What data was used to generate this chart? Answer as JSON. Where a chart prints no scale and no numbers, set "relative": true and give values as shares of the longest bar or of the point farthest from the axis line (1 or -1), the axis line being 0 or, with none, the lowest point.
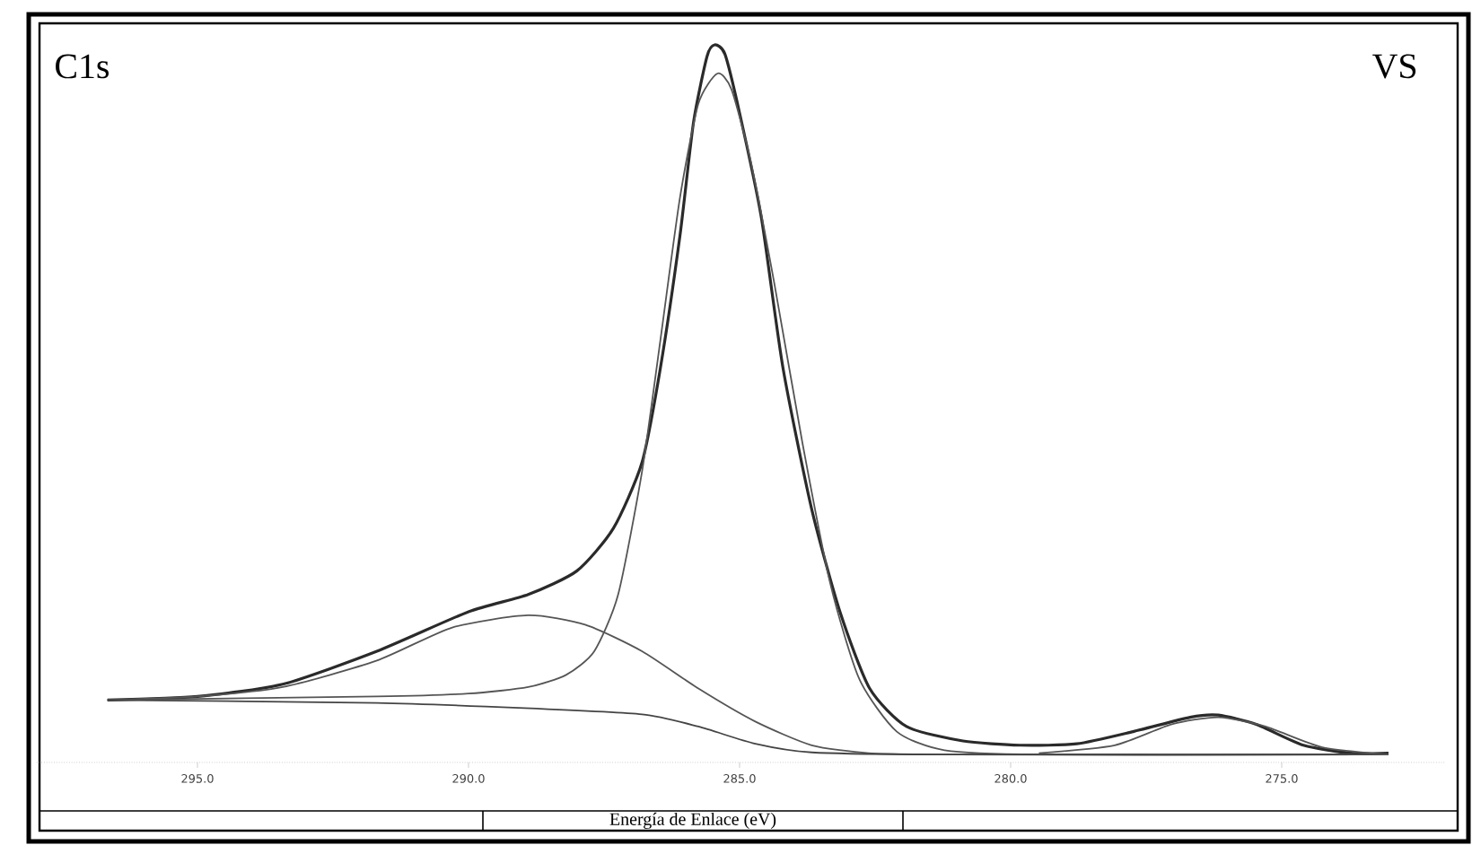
{
  "chart_data": {
    "type": "line",
    "relative": true,
    "xlabel": "Energía de Enlace (eV)",
    "annotations": [
      "C1s",
      "VS"
    ],
    "xlim": [
      298,
      272
    ],
    "xticks": [
      {
        "value": 295,
        "label": "295.0"
      },
      {
        "value": 290,
        "label": "290.0"
      },
      {
        "value": 285,
        "label": "285.0"
      },
      {
        "value": 280,
        "label": "280.0"
      },
      {
        "value": 275,
        "label": "275.0"
      }
    ],
    "grid": false,
    "marker": "none",
    "line_style": "solid",
    "series": [
      {
        "color": "#2a2a2a",
        "x": [
          296.66,
          295.0,
          293.43,
          291.69,
          290.0,
          288.9,
          288.0,
          287.33,
          286.8,
          286.46,
          286.1,
          285.85,
          285.6,
          285.46,
          285.27,
          285.0,
          284.6,
          284.2,
          283.67,
          283.14,
          282.6,
          281.92,
          280.88,
          279.83,
          278.78,
          277.74,
          276.69,
          276.17,
          275.47,
          274.6,
          273.73,
          273.03
        ],
        "values": [
          0.087,
          0.092,
          0.109,
          0.155,
          0.21,
          0.234,
          0.267,
          0.326,
          0.418,
          0.55,
          0.734,
          0.892,
          0.984,
          1.0,
          0.987,
          0.905,
          0.76,
          0.55,
          0.353,
          0.208,
          0.103,
          0.05,
          0.03,
          0.024,
          0.026,
          0.043,
          0.063,
          0.066,
          0.053,
          0.024,
          0.013,
          0.013
        ]
      },
      {
        "color": "#555555",
        "x": [
          296.66,
          291.69,
          290.0,
          288.9,
          288.2,
          287.68,
          287.24,
          286.8,
          286.46,
          286.1,
          285.76,
          285.41,
          285.15,
          284.8,
          284.36,
          283.84,
          283.32,
          282.79,
          282.1,
          281.22,
          279.48,
          273.03
        ],
        "values": [
          0.087,
          0.092,
          0.096,
          0.105,
          0.122,
          0.155,
          0.234,
          0.405,
          0.589,
          0.787,
          0.918,
          0.96,
          0.938,
          0.839,
          0.668,
          0.445,
          0.247,
          0.116,
          0.043,
          0.017,
          0.011,
          0.011
        ]
      },
      {
        "color": "#555555",
        "x": [
          296.66,
          295.0,
          293.43,
          291.69,
          290.3,
          288.9,
          287.85,
          286.8,
          285.76,
          284.71,
          283.67,
          282.62,
          281.22,
          273.03
        ],
        "values": [
          0.087,
          0.092,
          0.105,
          0.142,
          0.188,
          0.205,
          0.192,
          0.155,
          0.103,
          0.057,
          0.024,
          0.013,
          0.011,
          0.011
        ]
      },
      {
        "color": "#444444",
        "x": [
          296.66,
          291.69,
          289.07,
          286.8,
          285.76,
          284.71,
          283.67,
          281.22,
          273.03
        ],
        "values": [
          0.087,
          0.083,
          0.076,
          0.067,
          0.05,
          0.026,
          0.014,
          0.011,
          0.011
        ]
      },
      {
        "color": "#555555",
        "x": [
          279.48,
          278.08,
          277.04,
          276.17,
          275.3,
          274.25,
          273.03
        ],
        "values": [
          0.013,
          0.024,
          0.053,
          0.063,
          0.05,
          0.021,
          0.011
        ]
      }
    ]
  }
}
